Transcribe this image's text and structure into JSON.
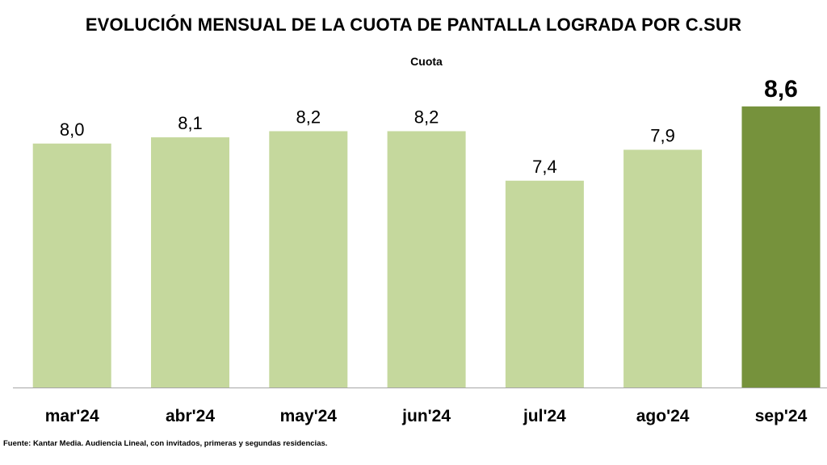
{
  "chart_data": {
    "type": "bar",
    "title": "EVOLUCIÓN MENSUAL DE LA CUOTA DE PANTALLA LOGRADA POR C.SUR",
    "subtitle": "Cuota",
    "categories": [
      "mar'24",
      "abr'24",
      "may'24",
      "jun'24",
      "jul'24",
      "ago'24",
      "sep'24"
    ],
    "values": [
      8.0,
      8.1,
      8.2,
      8.2,
      7.4,
      7.9,
      8.6
    ],
    "value_labels": [
      "8,0",
      "8,1",
      "8,2",
      "8,2",
      "7,4",
      "7,9",
      "8,6"
    ],
    "highlight_index": 6,
    "xlabel": "",
    "ylabel": "",
    "grid": false,
    "legend": "none"
  },
  "colors": {
    "bar": "#c5d89d",
    "bar_highlight": "#76923c",
    "axis": "#a6a6a6",
    "text": "#000000"
  },
  "source_note": "Fuente: Kantar Media. Audiencia Lineal, con invitados, primeras y segundas residencias."
}
